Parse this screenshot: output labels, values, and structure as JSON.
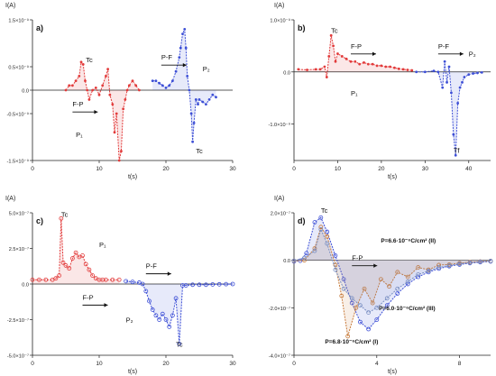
{
  "chart_data": [
    {
      "id": "a",
      "type": "line",
      "panel_label": "a)",
      "ylabel": "I(A)",
      "xlabel": "t(s)",
      "xlim": [
        0,
        30
      ],
      "ylim": [
        -1.5e-09,
        1.5e-09
      ],
      "x_ticks": [
        0,
        10,
        20,
        30
      ],
      "y_ticks": [
        1.5e-09,
        5e-10,
        0,
        -5e-10,
        -1.5e-09
      ],
      "x_tick_labels": [
        "0",
        "10",
        "20",
        "30"
      ],
      "y_tick_labels": [
        "1.5×10⁻⁹",
        "0.5×10⁻⁹",
        "0.0",
        "-0.5×10⁻⁹",
        "-1.5×10⁻⁹"
      ],
      "series": [
        {
          "color": "#e23b3b",
          "x": [
            5,
            5.5,
            6,
            6.5,
            7,
            7.3,
            7.6,
            7.9,
            8.2,
            8.5,
            9,
            9.5,
            10,
            10.5,
            11,
            11.3,
            11.6,
            12,
            12.3,
            12.6,
            13,
            13.3,
            13.6,
            13.9,
            14.2,
            14.5,
            15,
            15.5,
            16
          ],
          "y": [
            0,
            1e-10,
            1e-10,
            2e-10,
            3e-10,
            6e-10,
            5.5e-10,
            2e-10,
            0,
            -2e-10,
            0,
            5e-11,
            -1e-10,
            1e-10,
            3e-10,
            4.5e-10,
            -1e-10,
            -3e-10,
            -9e-10,
            -5e-10,
            -1.5e-09,
            -1.3e-09,
            -4e-10,
            -2e-10,
            0,
            1e-10,
            2e-10,
            1e-10,
            0
          ]
        },
        {
          "color": "#3d4fd6",
          "x": [
            18,
            18.5,
            19,
            19.5,
            20,
            20.5,
            21,
            21.5,
            22,
            22.2,
            22.5,
            22.8,
            23,
            23.2,
            23.5,
            23.8,
            24,
            24.2,
            24.5,
            24.8,
            25,
            25.5,
            26,
            26.5,
            27,
            27.5
          ],
          "y": [
            2e-10,
            2e-10,
            1.5e-10,
            1e-10,
            5e-11,
            1e-10,
            2e-10,
            4e-10,
            7e-10,
            9e-10,
            1.2e-09,
            1.3e-09,
            9e-10,
            3e-10,
            0,
            -5e-10,
            -1.1e-09,
            -7e-10,
            -2e-10,
            -3e-10,
            -2e-10,
            -2.5e-10,
            -3e-10,
            -2e-10,
            -1e-10,
            -1.5e-10
          ]
        }
      ],
      "annotations": [
        {
          "text": "Tc",
          "x": 8,
          "y": 6e-10
        },
        {
          "text": "F-P",
          "x": 6,
          "y": -3.5e-10
        },
        {
          "text": "P₁",
          "x": 6.5,
          "y": -1e-09
        },
        {
          "text": "P-F",
          "x": 19.3,
          "y": 6.5e-10
        },
        {
          "text": "P₂",
          "x": 25.5,
          "y": 4e-10
        },
        {
          "text": "Tc",
          "x": 24.5,
          "y": -1.35e-09
        }
      ]
    },
    {
      "id": "b",
      "type": "line",
      "panel_label": "b)",
      "ylabel": "I(A)",
      "xlabel": "t(s)",
      "xlim": [
        0,
        45
      ],
      "ylim": [
        -1.7e-09,
        1e-09
      ],
      "x_ticks": [
        0,
        10,
        20,
        30,
        40
      ],
      "y_ticks": [
        1e-09,
        0,
        -1e-09
      ],
      "x_tick_labels": [
        "0",
        "10",
        "20",
        "30",
        "40"
      ],
      "y_tick_labels": [
        "1.0×10⁻⁹",
        "0.0",
        "-1.0×10⁻⁹"
      ],
      "series": [
        {
          "color": "#e23b3b",
          "x": [
            1,
            3,
            5,
            6,
            7,
            7.5,
            8,
            8.5,
            9,
            9.5,
            10,
            11,
            12,
            13,
            14,
            15,
            16,
            17,
            18,
            19,
            20,
            21,
            22,
            23,
            24,
            25,
            26,
            27
          ],
          "y": [
            5e-11,
            4e-11,
            5e-11,
            5e-11,
            1e-10,
            -1e-10,
            3e-10,
            7e-10,
            5e-10,
            2e-10,
            3.5e-10,
            3e-10,
            2.5e-10,
            2e-10,
            2e-10,
            1.5e-10,
            1.8e-10,
            1.5e-10,
            1.5e-10,
            1.2e-10,
            1.2e-10,
            1e-10,
            1e-10,
            8e-11,
            6e-11,
            5e-11,
            4e-11,
            3e-11
          ]
        },
        {
          "color": "#3d4fd6",
          "x": [
            28,
            30,
            32,
            33,
            34,
            34.5,
            35,
            35.5,
            36,
            36.5,
            37,
            37.5,
            38,
            38.5,
            39,
            40,
            41,
            42,
            43
          ],
          "y": [
            0,
            0,
            2e-11,
            0,
            -3e-10,
            2e-10,
            -2e-10,
            1e-10,
            -4e-10,
            -1.2e-09,
            -1.6e-09,
            -6e-10,
            -3e-10,
            -2e-10,
            -1e-10,
            -5e-11,
            -3e-11,
            -2e-11,
            -1e-11
          ]
        }
      ],
      "annotations": [
        {
          "text": "Tc",
          "x": 8.5,
          "y": 7.5e-10
        },
        {
          "text": "F-P",
          "x": 13,
          "y": 4.5e-10
        },
        {
          "text": "P₁",
          "x": 13,
          "y": -4.5e-10
        },
        {
          "text": "P-F",
          "x": 33,
          "y": 4.5e-10
        },
        {
          "text": "P₂",
          "x": 40,
          "y": 3e-10
        },
        {
          "text": "Tf",
          "x": 36.5,
          "y": -1.55e-09
        }
      ]
    },
    {
      "id": "c",
      "type": "line",
      "panel_label": "c)",
      "ylabel": "I(A)",
      "xlabel": "t(s)",
      "xlim": [
        0,
        30
      ],
      "ylim": [
        -5e-07,
        5e-07
      ],
      "x_ticks": [
        0,
        10,
        20,
        30
      ],
      "y_ticks": [
        5e-07,
        2.5e-07,
        0,
        -2.5e-07,
        -5e-07
      ],
      "x_tick_labels": [
        "0",
        "10",
        "20",
        "30"
      ],
      "y_tick_labels": [
        "5.0×10⁻⁷",
        "2.5×10⁻⁷",
        "0.0",
        "-2.5×10⁻⁷",
        "-5.0×10⁻⁷"
      ],
      "series": [
        {
          "color": "#e23b3b",
          "x": [
            0,
            1,
            2,
            3,
            3.5,
            4,
            4.3,
            4.6,
            5,
            5.5,
            6,
            6.5,
            7,
            7.5,
            8,
            8.5,
            9,
            9.5,
            10,
            10.5,
            11,
            12,
            13
          ],
          "y": [
            3e-08,
            3e-08,
            3e-08,
            3e-08,
            4e-08,
            6e-08,
            4.6e-07,
            1.5e-07,
            1.3e-07,
            1.1e-07,
            1.8e-07,
            2.2e-07,
            1.9e-07,
            2e-07,
            1.4e-07,
            1e-07,
            6e-08,
            4e-08,
            3e-08,
            3e-08,
            3e-08,
            3e-08,
            3e-08
          ]
        },
        {
          "color": "#3d4fd6",
          "x": [
            14,
            15,
            16,
            16.5,
            17,
            17.5,
            18,
            18.5,
            19,
            19.5,
            20,
            20.5,
            21,
            21.5,
            22,
            22.5,
            23,
            24,
            25,
            26,
            27,
            28,
            29,
            30
          ],
          "y": [
            2e-08,
            1.5e-08,
            1e-08,
            0,
            -5e-08,
            -1.2e-07,
            -1.8e-07,
            -2.2e-07,
            -2.5e-07,
            -2.1e-07,
            -2.5e-07,
            -3e-07,
            -2.2e-07,
            -1e-07,
            -4.2e-07,
            -1e-08,
            -1e-08,
            -5e-09,
            -5e-09,
            -5e-09,
            -3e-09,
            -2e-09,
            -1e-09,
            0
          ]
        }
      ],
      "annotations": [
        {
          "text": "Tc",
          "x": 4.3,
          "y": 4.7e-07
        },
        {
          "text": "P₁",
          "x": 10,
          "y": 2.6e-07
        },
        {
          "text": "F-P",
          "x": 7.5,
          "y": -1.1e-07
        },
        {
          "text": "P-F",
          "x": 17,
          "y": 1.1e-07
        },
        {
          "text": "P₂",
          "x": 14,
          "y": -2.7e-07
        },
        {
          "text": "Tc",
          "x": 21.5,
          "y": -4.4e-07
        }
      ]
    },
    {
      "id": "d",
      "type": "line",
      "panel_label": "d)",
      "ylabel": "I(A)",
      "xlabel": "t(s)",
      "xlim": [
        0,
        9.5
      ],
      "ylim": [
        -4e-07,
        2e-07
      ],
      "x_ticks": [
        0,
        4,
        8
      ],
      "y_ticks": [
        2e-07,
        0,
        -2e-07,
        -4e-07
      ],
      "x_tick_labels": [
        "0",
        "4",
        "8"
      ],
      "y_tick_labels": [
        "2.0×10⁻⁷",
        "0.0",
        "-2.0×10⁻⁷",
        "-4.0×10⁻⁷"
      ],
      "series": [
        {
          "color": "#3d4fd6",
          "x": [
            0,
            0.3,
            0.6,
            1,
            1.3,
            1.6,
            2,
            2.4,
            2.8,
            3.2,
            3.6,
            4,
            4.5,
            5,
            5.5,
            6,
            6.5,
            7,
            7.5,
            8,
            8.5,
            9,
            9.5
          ],
          "y": [
            -5e-09,
            -2e-09,
            3e-08,
            1.6e-07,
            1.8e-07,
            1.2e-07,
            2e-08,
            -8e-08,
            -1.8e-07,
            -2.6e-07,
            -2.9e-07,
            -2.5e-07,
            -1.9e-07,
            -1.4e-07,
            -1e-07,
            -7e-08,
            -5e-08,
            -3.5e-08,
            -2.5e-08,
            -1.8e-08,
            -1.2e-08,
            -8e-09,
            -5e-09
          ]
        },
        {
          "color": "#c77a3a",
          "x": [
            0,
            0.5,
            1,
            1.3,
            1.6,
            2,
            2.3,
            2.6,
            3,
            3.4,
            3.8,
            4.2,
            4.6,
            5,
            5.5,
            6,
            6.5,
            7,
            7.5,
            8,
            8.5,
            9,
            9.5
          ],
          "y": [
            -3e-09,
            0,
            5e-08,
            1.4e-07,
            1e-07,
            -2e-08,
            -1.5e-07,
            -3.2e-07,
            -2e-07,
            -1.2e-07,
            -1.8e-07,
            -8e-08,
            -1.1e-07,
            -5e-08,
            -7e-08,
            -3e-08,
            -4e-08,
            -2e-08,
            -1.8e-08,
            -1.2e-08,
            -8e-09,
            -5e-09,
            -3e-09
          ]
        },
        {
          "color": "#7a8fc2",
          "x": [
            0,
            0.5,
            1,
            1.3,
            1.6,
            2,
            2.4,
            2.8,
            3.2,
            3.6,
            4,
            4.5,
            5,
            5.5,
            6,
            6.5,
            7,
            7.5,
            8,
            8.5,
            9,
            9.5
          ],
          "y": [
            -2e-09,
            1e-08,
            4e-08,
            1.3e-07,
            7e-08,
            -4e-08,
            -1.2e-07,
            -1.6e-07,
            -1.9e-07,
            -2.2e-07,
            -2e-07,
            -1.6e-07,
            -1.2e-07,
            -9e-08,
            -6e-08,
            -4.5e-08,
            -3e-08,
            -2.2e-08,
            -1.5e-08,
            -1e-08,
            -6e-09,
            -3e-09
          ]
        }
      ],
      "annotations": [
        {
          "text": "Tc",
          "x": 1.3,
          "y": 2e-07
        },
        {
          "text": "F-P",
          "x": 2.8,
          "y": 0.0
        },
        {
          "text": "P=6.6·10⁻⁶C/cm² (II)",
          "x": 4.2,
          "y": 7.5e-08
        },
        {
          "text": "P=6.0·10⁻⁶C/cm² (III)",
          "x": 4.1,
          "y": -2.1e-07
        },
        {
          "text": "P=6.8·10⁻⁶C/cm² (I)",
          "x": 1.5,
          "y": -3.5e-07
        }
      ]
    }
  ]
}
